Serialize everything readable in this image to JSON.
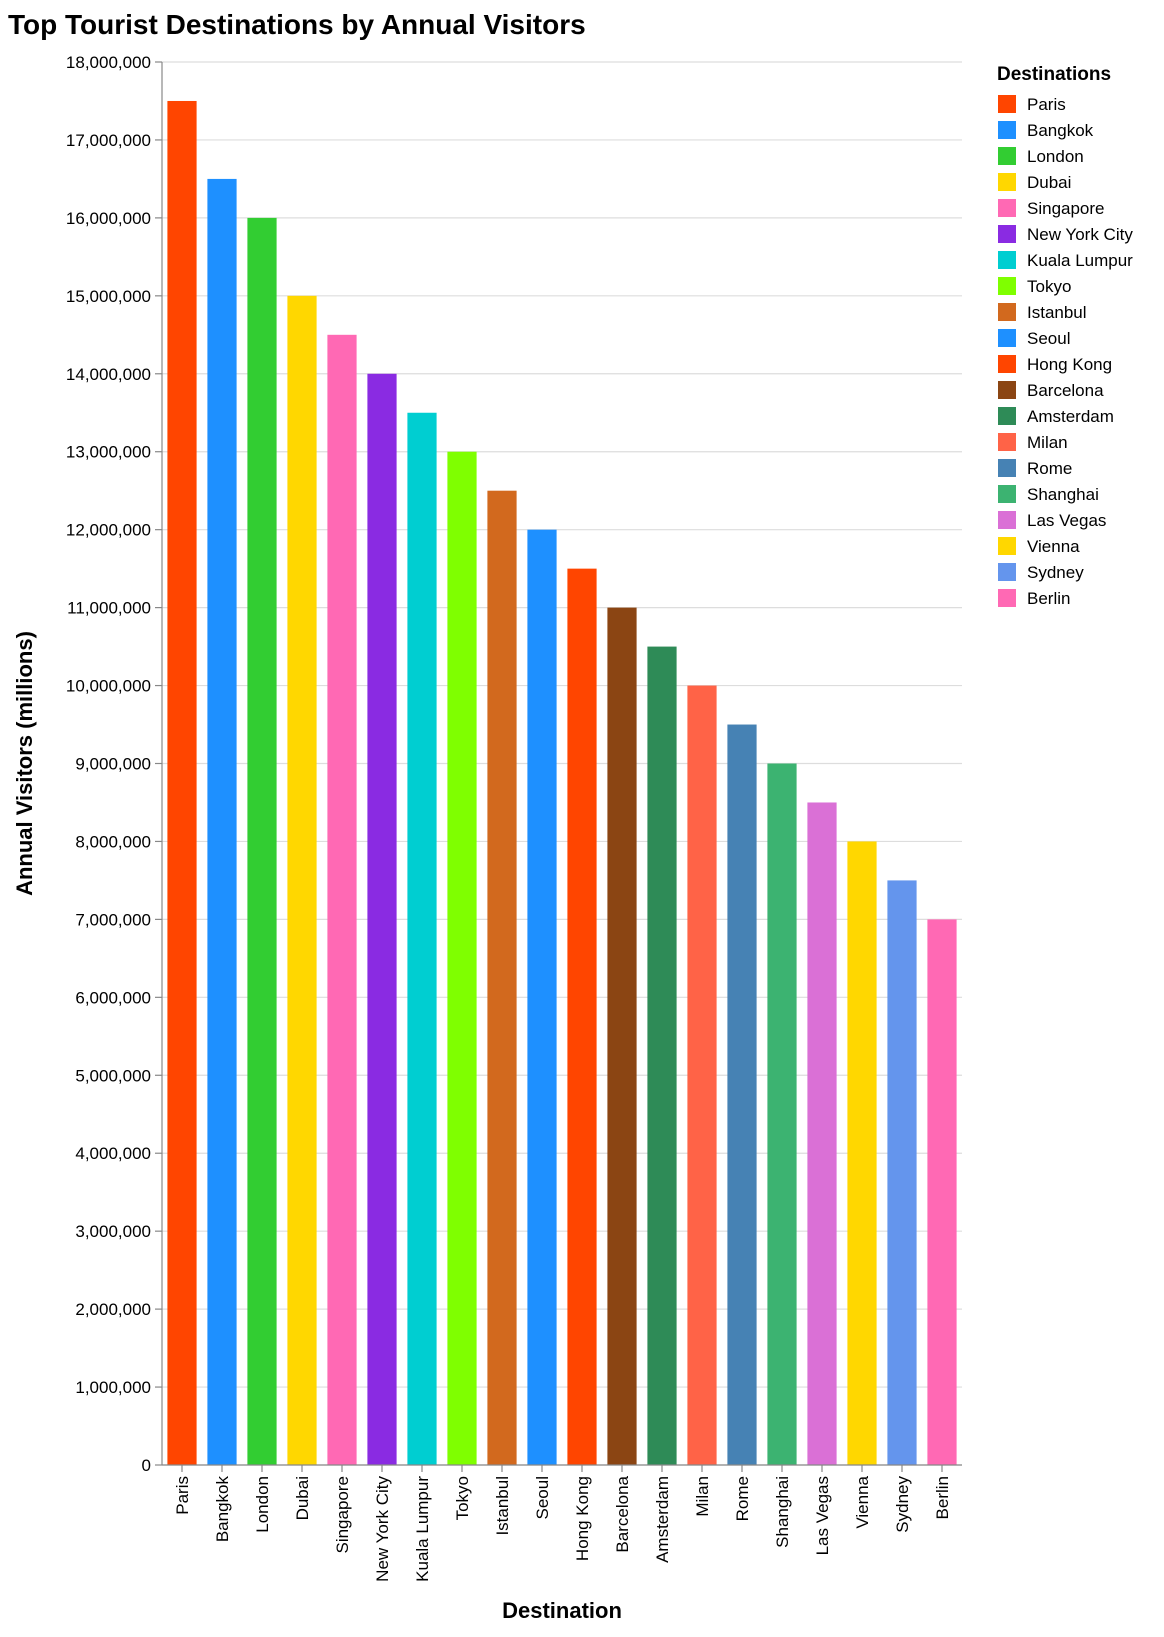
{
  "chart_data": {
    "type": "bar",
    "title": "Top Tourist Destinations by Annual Visitors",
    "xlabel": "Destination",
    "ylabel": "Annual Visitors (millions)",
    "ylim": [
      0,
      18000000
    ],
    "ytick_step": 1000000,
    "grid": true,
    "legend_title": "Destinations",
    "legend_position": "right",
    "categories": [
      "Paris",
      "Bangkok",
      "London",
      "Dubai",
      "Singapore",
      "New York City",
      "Kuala Lumpur",
      "Tokyo",
      "Istanbul",
      "Seoul",
      "Hong Kong",
      "Barcelona",
      "Amsterdam",
      "Milan",
      "Rome",
      "Shanghai",
      "Las Vegas",
      "Vienna",
      "Sydney",
      "Berlin"
    ],
    "values": [
      17500000,
      16500000,
      16000000,
      15000000,
      14500000,
      14000000,
      13500000,
      13000000,
      12500000,
      12000000,
      11500000,
      11000000,
      10500000,
      10000000,
      9500000,
      9000000,
      8500000,
      8000000,
      7500000,
      7000000
    ],
    "colors": [
      "#FF4500",
      "#1E90FF",
      "#32CD32",
      "#FFD700",
      "#FF69B4",
      "#8A2BE2",
      "#00CED1",
      "#7FFF00",
      "#D2691E",
      "#1E90FF",
      "#FF4500",
      "#8B4513",
      "#2E8B57",
      "#FF6347",
      "#4682B4",
      "#3CB371",
      "#DA70D6",
      "#FFD700",
      "#6495ED",
      "#FF69B4"
    ]
  }
}
